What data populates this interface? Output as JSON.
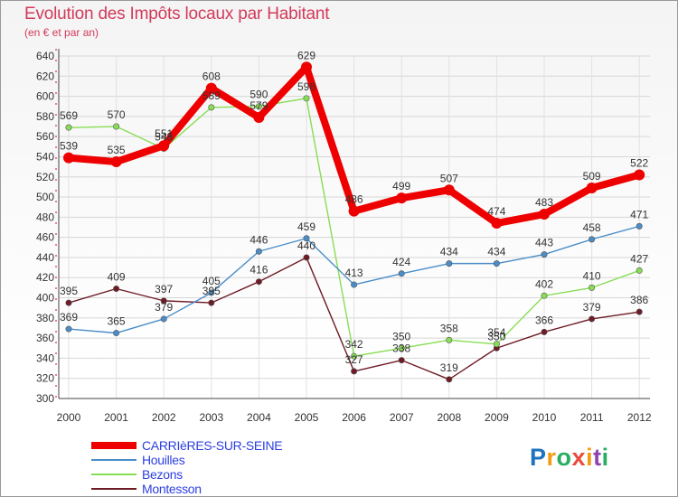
{
  "title": "Evolution des Impôts locaux par Habitant",
  "subtitle": "(en € et par an)",
  "logo": {
    "text": "Proxiti",
    "letters": [
      "P",
      "r",
      "o",
      "x",
      "i",
      "t",
      "i"
    ],
    "colors": [
      "#1e73be",
      "#f39c12",
      "#27ae60",
      "#e74c3c",
      "#f39c12",
      "#8e44ad",
      "#27ae60"
    ]
  },
  "chart_data": {
    "type": "line",
    "x": [
      "2000",
      "2001",
      "2002",
      "2003",
      "2004",
      "2005",
      "2006",
      "2007",
      "2008",
      "2009",
      "2010",
      "2011",
      "2012"
    ],
    "ylim": [
      300,
      640
    ],
    "yticks": [
      300,
      320,
      340,
      360,
      380,
      400,
      420,
      440,
      460,
      480,
      500,
      520,
      540,
      560,
      580,
      600,
      620,
      640
    ],
    "grid": true,
    "legend_position": "bottom-left",
    "series": [
      {
        "name": "CARRIèRES-SUR-SEINE",
        "color": "#ee0000",
        "values": [
          539,
          535,
          551,
          608,
          579,
          629,
          486,
          499,
          507,
          474,
          483,
          509,
          522
        ],
        "labels": [
          "539",
          "535",
          "551",
          "608",
          "579",
          "629",
          "486",
          "499",
          "507",
          "474",
          "483",
          "509",
          "522"
        ]
      },
      {
        "name": "Houilles",
        "color": "#4a8dc8",
        "values": [
          369,
          365,
          379,
          405,
          446,
          459,
          413,
          424,
          434,
          434,
          443,
          458,
          471
        ],
        "labels": [
          "369",
          "365",
          "379",
          "405",
          "446",
          "459",
          "413",
          "424",
          "434",
          "434",
          "443",
          "458",
          "471"
        ]
      },
      {
        "name": "Bezons",
        "color": "#88dd55",
        "values": [
          569,
          570,
          548,
          589,
          590,
          598,
          342,
          350,
          358,
          354,
          402,
          410,
          427
        ],
        "labels": [
          "569",
          "570",
          "548",
          "589",
          "590",
          "598",
          "342",
          "350",
          "358",
          "354",
          "402",
          "410",
          "427"
        ]
      },
      {
        "name": "Montesson",
        "color": "#6e1b26",
        "values": [
          395,
          409,
          397,
          395,
          416,
          440,
          327,
          338,
          319,
          350,
          366,
          379,
          386
        ],
        "labels": [
          "395",
          "409",
          "397",
          "395",
          "416",
          "440",
          "327",
          "338",
          "319",
          "350",
          "366",
          "379",
          "386"
        ]
      }
    ]
  }
}
